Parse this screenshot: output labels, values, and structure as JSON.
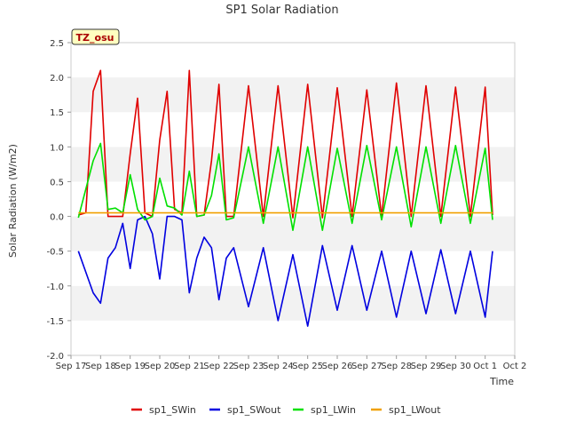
{
  "chart_data": {
    "type": "line",
    "title": "SP1 Solar Radiation",
    "xlabel": "Time",
    "ylabel": "Solar Radiation (W/m2)",
    "site_label": "TZ_osu",
    "ylim": [
      -2.0,
      2.5
    ],
    "xlim": [
      "2023-09-17",
      "2023-10-02"
    ],
    "yticks": [
      -2.0,
      -1.5,
      -1.0,
      -0.5,
      0.0,
      0.5,
      1.0,
      1.5,
      2.0,
      2.5
    ],
    "ytick_labels": [
      "-2.0",
      "-1.5",
      "-1.0",
      "-0.5",
      "0.0",
      "0.5",
      "1.0",
      "1.5",
      "2.0",
      "2.5"
    ],
    "xtick_labels": [
      "Sep 17",
      "Sep 18",
      "Sep 19",
      "Sep 20",
      "Sep 21",
      "Sep 22",
      "Sep 23",
      "Sep 24",
      "Sep 25",
      "Sep 26",
      "Sep 27",
      "Sep 28",
      "Sep 29",
      "Sep 30",
      "Oct 1",
      "Oct 2"
    ],
    "grid": "horizontal bands",
    "legend_position": "bottom",
    "series": [
      {
        "name": "sp1_SWin",
        "color": "#e00000",
        "points": [
          [
            "Sep 17 06:00",
            0.02
          ],
          [
            "Sep 17 12:00",
            0.05
          ],
          [
            "Sep 17 18:00",
            1.8
          ],
          [
            "Sep 18 00:00",
            2.1
          ],
          [
            "Sep 18 06:00",
            0.0
          ],
          [
            "Sep 18 12:00",
            0.0
          ],
          [
            "Sep 18 18:00",
            0.0
          ],
          [
            "Sep 19 00:00",
            0.9
          ],
          [
            "Sep 19 06:00",
            1.7
          ],
          [
            "Sep 19 12:00",
            0.05
          ],
          [
            "Sep 19 18:00",
            0.0
          ],
          [
            "Sep 20 00:00",
            1.1
          ],
          [
            "Sep 20 06:00",
            1.8
          ],
          [
            "Sep 20 12:00",
            0.1
          ],
          [
            "Sep 20 18:00",
            0.05
          ],
          [
            "Sep 21 00:00",
            2.1
          ],
          [
            "Sep 21 06:00",
            0.0
          ],
          [
            "Sep 21 12:00",
            0.02
          ],
          [
            "Sep 21 18:00",
            0.8
          ],
          [
            "Sep 22 00:00",
            1.9
          ],
          [
            "Sep 22 06:00",
            0.0
          ],
          [
            "Sep 22 12:00",
            0.0
          ],
          [
            "Sep 23 00:00",
            1.88
          ],
          [
            "Sep 23 12:00",
            0.0
          ],
          [
            "Sep 24 00:00",
            1.88
          ],
          [
            "Sep 24 12:00",
            -0.02
          ],
          [
            "Sep 25 00:00",
            1.9
          ],
          [
            "Sep 25 12:00",
            -0.02
          ],
          [
            "Sep 26 00:00",
            1.85
          ],
          [
            "Sep 26 12:00",
            0.0
          ],
          [
            "Sep 27 00:00",
            1.82
          ],
          [
            "Sep 27 12:00",
            0.0
          ],
          [
            "Sep 28 00:00",
            1.92
          ],
          [
            "Sep 28 12:00",
            0.0
          ],
          [
            "Sep 29 00:00",
            1.88
          ],
          [
            "Sep 29 12:00",
            0.0
          ],
          [
            "Sep 30 00:00",
            1.86
          ],
          [
            "Sep 30 12:00",
            0.0
          ],
          [
            "Oct 1 00:00",
            1.86
          ],
          [
            "Oct 1 06:00",
            0.02
          ]
        ]
      },
      {
        "name": "sp1_SWout",
        "color": "#0000e0",
        "points": [
          [
            "Sep 17 06:00",
            -0.5
          ],
          [
            "Sep 17 18:00",
            -1.1
          ],
          [
            "Sep 18 00:00",
            -1.25
          ],
          [
            "Sep 18 06:00",
            -0.6
          ],
          [
            "Sep 18 12:00",
            -0.45
          ],
          [
            "Sep 18 18:00",
            -0.1
          ],
          [
            "Sep 19 00:00",
            -0.75
          ],
          [
            "Sep 19 06:00",
            -0.05
          ],
          [
            "Sep 19 12:00",
            0.0
          ],
          [
            "Sep 19 18:00",
            -0.25
          ],
          [
            "Sep 20 00:00",
            -0.9
          ],
          [
            "Sep 20 06:00",
            0.0
          ],
          [
            "Sep 20 12:00",
            0.0
          ],
          [
            "Sep 20 18:00",
            -0.05
          ],
          [
            "Sep 21 00:00",
            -1.1
          ],
          [
            "Sep 21 06:00",
            -0.6
          ],
          [
            "Sep 21 12:00",
            -0.3
          ],
          [
            "Sep 21 18:00",
            -0.45
          ],
          [
            "Sep 22 00:00",
            -1.2
          ],
          [
            "Sep 22 06:00",
            -0.6
          ],
          [
            "Sep 22 12:00",
            -0.45
          ],
          [
            "Sep 23 00:00",
            -1.3
          ],
          [
            "Sep 23 12:00",
            -0.45
          ],
          [
            "Sep 24 00:00",
            -1.5
          ],
          [
            "Sep 24 12:00",
            -0.55
          ],
          [
            "Sep 25 00:00",
            -1.58
          ],
          [
            "Sep 25 12:00",
            -0.42
          ],
          [
            "Sep 26 00:00",
            -1.35
          ],
          [
            "Sep 26 12:00",
            -0.42
          ],
          [
            "Sep 27 00:00",
            -1.35
          ],
          [
            "Sep 27 12:00",
            -0.5
          ],
          [
            "Sep 28 00:00",
            -1.45
          ],
          [
            "Sep 28 12:00",
            -0.5
          ],
          [
            "Sep 29 00:00",
            -1.4
          ],
          [
            "Sep 29 12:00",
            -0.48
          ],
          [
            "Sep 30 00:00",
            -1.4
          ],
          [
            "Sep 30 12:00",
            -0.5
          ],
          [
            "Oct 1 00:00",
            -1.45
          ],
          [
            "Oct 1 06:00",
            -0.5
          ]
        ]
      },
      {
        "name": "sp1_LWin",
        "color": "#00e000",
        "points": [
          [
            "Sep 17 06:00",
            -0.02
          ],
          [
            "Sep 17 18:00",
            0.8
          ],
          [
            "Sep 18 00:00",
            1.05
          ],
          [
            "Sep 18 06:00",
            0.1
          ],
          [
            "Sep 18 12:00",
            0.12
          ],
          [
            "Sep 18 18:00",
            0.05
          ],
          [
            "Sep 19 00:00",
            0.6
          ],
          [
            "Sep 19 06:00",
            0.1
          ],
          [
            "Sep 19 12:00",
            -0.05
          ],
          [
            "Sep 19 18:00",
            0.0
          ],
          [
            "Sep 20 00:00",
            0.55
          ],
          [
            "Sep 20 06:00",
            0.15
          ],
          [
            "Sep 20 12:00",
            0.12
          ],
          [
            "Sep 20 18:00",
            0.02
          ],
          [
            "Sep 21 00:00",
            0.65
          ],
          [
            "Sep 21 06:00",
            0.0
          ],
          [
            "Sep 21 12:00",
            0.02
          ],
          [
            "Sep 21 18:00",
            0.3
          ],
          [
            "Sep 22 00:00",
            0.9
          ],
          [
            "Sep 22 06:00",
            -0.05
          ],
          [
            "Sep 22 12:00",
            -0.02
          ],
          [
            "Sep 23 00:00",
            1.0
          ],
          [
            "Sep 23 12:00",
            -0.1
          ],
          [
            "Sep 24 00:00",
            1.0
          ],
          [
            "Sep 24 12:00",
            -0.2
          ],
          [
            "Sep 25 00:00",
            1.0
          ],
          [
            "Sep 25 12:00",
            -0.2
          ],
          [
            "Sep 26 00:00",
            0.98
          ],
          [
            "Sep 26 12:00",
            -0.1
          ],
          [
            "Sep 27 00:00",
            1.02
          ],
          [
            "Sep 27 12:00",
            -0.05
          ],
          [
            "Sep 28 00:00",
            1.0
          ],
          [
            "Sep 28 12:00",
            -0.15
          ],
          [
            "Sep 29 00:00",
            1.0
          ],
          [
            "Sep 29 12:00",
            -0.1
          ],
          [
            "Sep 30 00:00",
            1.02
          ],
          [
            "Sep 30 12:00",
            -0.1
          ],
          [
            "Oct 1 00:00",
            0.98
          ],
          [
            "Oct 1 06:00",
            -0.05
          ]
        ]
      },
      {
        "name": "sp1_LWout",
        "color": "#f0a000",
        "points": [
          [
            "Sep 17 06:00",
            0.05
          ],
          [
            "Oct 1 06:00",
            0.05
          ]
        ]
      }
    ]
  }
}
